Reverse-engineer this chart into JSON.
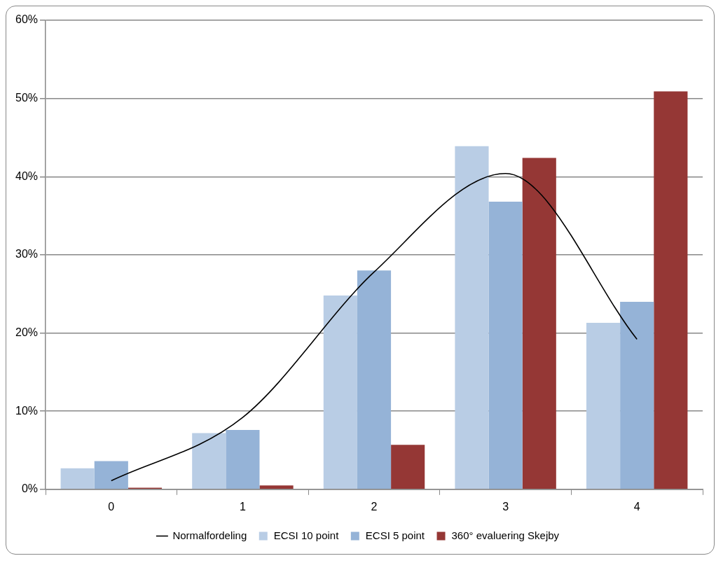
{
  "chart_data": {
    "type": "bar",
    "categories": [
      "0",
      "1",
      "2",
      "3",
      "4"
    ],
    "series": [
      {
        "name": "ECSI 10 point",
        "color": "#b9cde5",
        "values": [
          2.7,
          7.2,
          24.8,
          43.9,
          21.3
        ]
      },
      {
        "name": "ECSI 5 point",
        "color": "#95b3d7",
        "values": [
          3.6,
          7.6,
          28.0,
          36.8,
          24.0
        ]
      },
      {
        "name": "360° evaluering Skejby",
        "color": "#953735",
        "values": [
          0.2,
          0.5,
          5.7,
          42.4,
          50.9
        ]
      },
      {
        "name": "Normalfordeling",
        "type": "line",
        "color": "#000000",
        "values": [
          1.1,
          9.2,
          27.8,
          40.4,
          19.2
        ]
      }
    ],
    "ylim": [
      0,
      60
    ],
    "yticks": [
      {
        "value": 0,
        "label": "0%"
      },
      {
        "value": 10,
        "label": "10%"
      },
      {
        "value": 20,
        "label": "20%"
      },
      {
        "value": 30,
        "label": "30%"
      },
      {
        "value": 40,
        "label": "40%"
      },
      {
        "value": 50,
        "label": "50%"
      },
      {
        "value": 60,
        "label": "60%"
      }
    ],
    "grid": "y",
    "legend": "bottom",
    "marker": "none"
  }
}
